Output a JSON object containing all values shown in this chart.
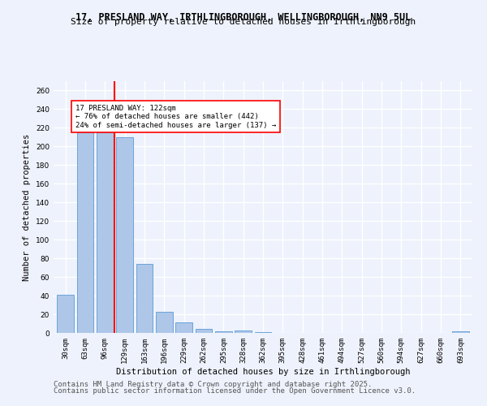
{
  "title_line1": "17, PRESLAND WAY, IRTHLINGBOROUGH, WELLINGBOROUGH, NN9 5UL",
  "title_line2": "Size of property relative to detached houses in Irthlingborough",
  "xlabel": "Distribution of detached houses by size in Irthlingborough",
  "ylabel": "Number of detached properties",
  "categories": [
    "30sqm",
    "63sqm",
    "96sqm",
    "129sqm",
    "163sqm",
    "196sqm",
    "229sqm",
    "262sqm",
    "295sqm",
    "328sqm",
    "362sqm",
    "395sqm",
    "428sqm",
    "461sqm",
    "494sqm",
    "527sqm",
    "560sqm",
    "594sqm",
    "627sqm",
    "660sqm",
    "693sqm"
  ],
  "values": [
    41,
    215,
    215,
    210,
    74,
    23,
    11,
    4,
    2,
    3,
    1,
    0,
    0,
    0,
    0,
    0,
    0,
    0,
    0,
    0,
    2
  ],
  "bar_color": "#aec6e8",
  "bar_edge_color": "#5b9bd5",
  "annotation_text": "17 PRESLAND WAY: 122sqm\n← 76% of detached houses are smaller (442)\n24% of semi-detached houses are larger (137) →",
  "annotation_box_color": "white",
  "annotation_box_edge": "red",
  "highlight_line_color": "red",
  "ylim": [
    0,
    270
  ],
  "yticks": [
    0,
    20,
    40,
    60,
    80,
    100,
    120,
    140,
    160,
    180,
    200,
    220,
    240,
    260
  ],
  "footer_line1": "Contains HM Land Registry data © Crown copyright and database right 2025.",
  "footer_line2": "Contains public sector information licensed under the Open Government Licence v3.0.",
  "bg_color": "#eef2fc",
  "plot_bg_color": "#eef2fc",
  "grid_color": "#ffffff",
  "title_fontsize": 8.5,
  "subtitle_fontsize": 8,
  "axis_label_fontsize": 7.5,
  "tick_fontsize": 6.5,
  "footer_fontsize": 6.5
}
